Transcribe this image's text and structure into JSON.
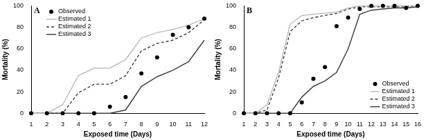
{
  "chart_data": [
    {
      "type": "line",
      "title": "A",
      "x_label": "Exposed time (Days)",
      "y_label": "Mortality (%)",
      "x": [
        1,
        2,
        3,
        4,
        5,
        6,
        7,
        8,
        9,
        10,
        11,
        12
      ],
      "xlim": [
        1,
        12
      ],
      "xticks": [
        1,
        2,
        3,
        4,
        5,
        6,
        7,
        8,
        9,
        10,
        11,
        12
      ],
      "ylim": [
        0,
        100
      ],
      "yticks": [
        0,
        20,
        40,
        60,
        80,
        100
      ],
      "grid": false,
      "legend": "top-left",
      "series": [
        {
          "name": "Observed",
          "type": "scatter",
          "marker": "circle",
          "color": "#000000",
          "values": [
            0,
            0,
            0,
            0,
            0,
            6,
            15,
            37,
            52,
            73,
            80,
            88
          ]
        },
        {
          "name": "Estimated 1",
          "type": "line",
          "line_style": "solid",
          "color": "#bfbfbf",
          "values": [
            0,
            0,
            8,
            35,
            42,
            42,
            50,
            70,
            75,
            78,
            82,
            88
          ]
        },
        {
          "name": "Estimated 2",
          "type": "line",
          "line_style": "dashed",
          "color": "#333333",
          "values": [
            0,
            0,
            0,
            19,
            27,
            27,
            35,
            58,
            65,
            68,
            75,
            87
          ]
        },
        {
          "name": "Estimated 3",
          "type": "line",
          "line_style": "solid",
          "color": "#404040",
          "values": [
            0,
            0,
            0,
            0,
            0,
            0,
            3,
            25,
            34,
            40,
            48,
            68
          ]
        }
      ]
    },
    {
      "type": "line",
      "title": "B",
      "x_label": "Exposed time (Days)",
      "y_label": "Mortality (%)",
      "x": [
        1,
        2,
        3,
        4,
        5,
        6,
        7,
        8,
        9,
        10,
        11,
        12,
        13,
        14,
        15,
        16
      ],
      "xlim": [
        1,
        16
      ],
      "xticks": [
        1,
        2,
        3,
        4,
        5,
        6,
        7,
        8,
        9,
        10,
        11,
        12,
        13,
        14,
        15,
        16
      ],
      "ylim": [
        0,
        100
      ],
      "yticks": [
        0,
        20,
        40,
        60,
        80,
        100
      ],
      "grid": false,
      "legend": "bottom-right",
      "series": [
        {
          "name": "Observed",
          "type": "scatter",
          "marker": "circle",
          "color": "#000000",
          "values": [
            0,
            0,
            0,
            0,
            0,
            10,
            32,
            43,
            81,
            89,
            97,
            100,
            100,
            100,
            98,
            100
          ]
        },
        {
          "name": "Estimated 1",
          "type": "line",
          "line_style": "solid",
          "color": "#bfbfbf",
          "values": [
            0,
            0,
            8,
            38,
            83,
            91,
            92,
            93,
            94,
            98,
            100,
            100,
            100,
            100,
            100,
            100
          ]
        },
        {
          "name": "Estimated 2",
          "type": "line",
          "line_style": "dashed",
          "color": "#333333",
          "values": [
            0,
            0,
            3,
            33,
            76,
            86,
            89,
            91,
            93,
            97,
            99,
            99,
            99,
            99,
            99,
            100
          ]
        },
        {
          "name": "Estimated 3",
          "type": "line",
          "line_style": "solid",
          "color": "#404040",
          "values": [
            0,
            0,
            0,
            0,
            0,
            15,
            25,
            30,
            38,
            60,
            92,
            96,
            97,
            98,
            98,
            99
          ]
        }
      ]
    }
  ]
}
